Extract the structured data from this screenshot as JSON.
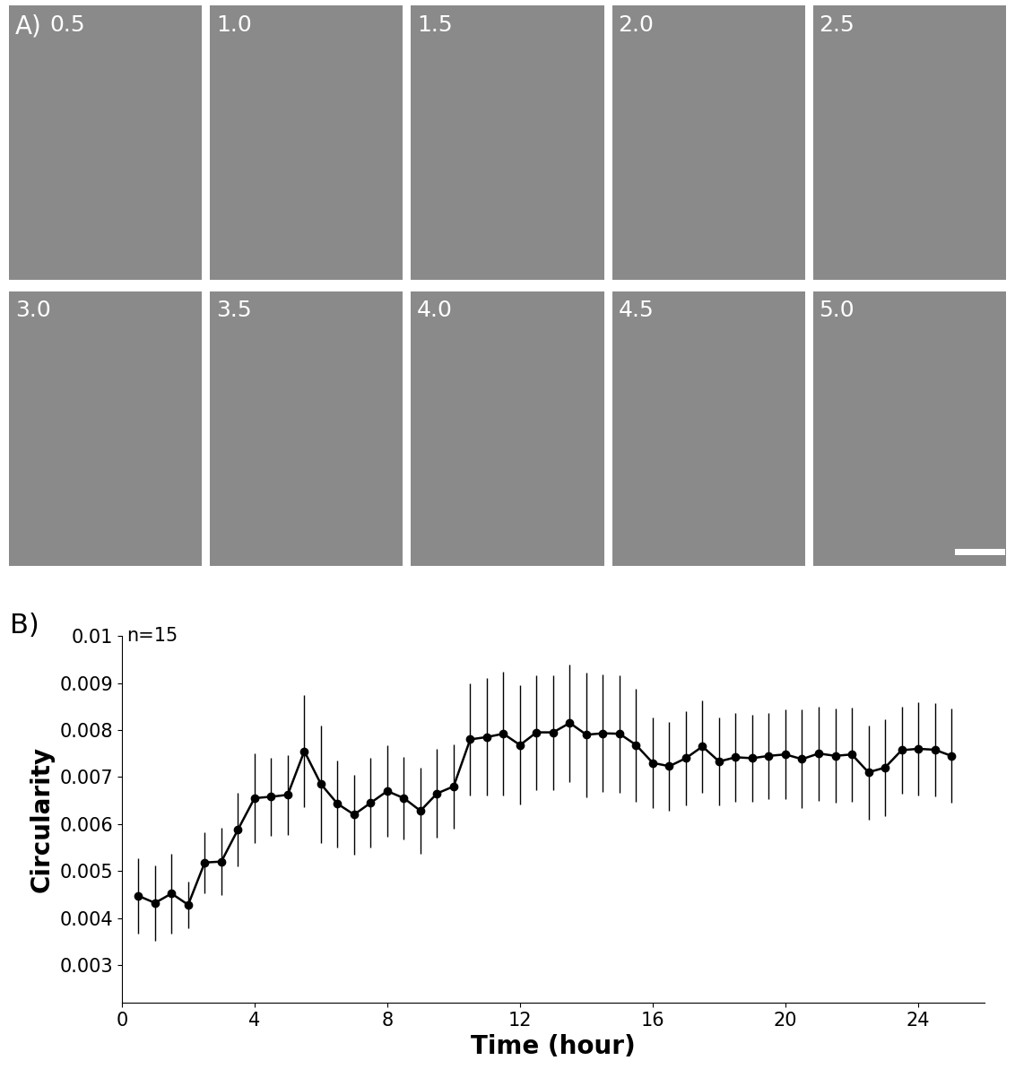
{
  "panel_a": {
    "label": "A)",
    "frames": [
      "0.5",
      "1.0",
      "1.5",
      "2.0",
      "2.5",
      "3.0",
      "3.5",
      "4.0",
      "4.5",
      "5.0"
    ]
  },
  "chart_data": {
    "type": "line",
    "panel_label": "B)",
    "annotation": "n=15",
    "x_label": "Time (hour)",
    "y_label": "Circularity",
    "x": [
      0.5,
      1.0,
      1.5,
      2.0,
      2.5,
      3.0,
      3.5,
      4.0,
      4.5,
      5.0,
      5.5,
      6.0,
      6.5,
      7.0,
      7.5,
      8.0,
      8.5,
      9.0,
      9.5,
      10.0,
      10.5,
      11.0,
      11.5,
      12.0,
      12.5,
      13.0,
      13.5,
      14.0,
      14.5,
      15.0,
      15.5,
      16.0,
      16.5,
      17.0,
      17.5,
      18.0,
      18.5,
      19.0,
      19.5,
      20.0,
      20.5,
      21.0,
      21.5,
      22.0,
      22.5,
      23.0,
      23.5,
      24.0,
      24.5,
      25.0
    ],
    "series": [
      {
        "name": "Circularity",
        "color": "#000000",
        "marker": "o",
        "line_style": "solid",
        "values": [
          0.00447,
          0.00432,
          0.00452,
          0.00428,
          0.00518,
          0.0052,
          0.00588,
          0.00655,
          0.00658,
          0.00662,
          0.00755,
          0.00685,
          0.00643,
          0.0062,
          0.00645,
          0.0067,
          0.00655,
          0.00628,
          0.00665,
          0.0068,
          0.0078,
          0.00785,
          0.00792,
          0.00768,
          0.00795,
          0.00795,
          0.00815,
          0.0079,
          0.00793,
          0.00792,
          0.00768,
          0.0073,
          0.00723,
          0.0074,
          0.00765,
          0.00733,
          0.00742,
          0.0074,
          0.00745,
          0.00748,
          0.00738,
          0.0075,
          0.00745,
          0.00748,
          0.0071,
          0.0072,
          0.00757,
          0.0076,
          0.00758,
          0.00745
        ],
        "errors": [
          0.0008,
          0.0008,
          0.00085,
          0.0005,
          0.00065,
          0.00072,
          0.00078,
          0.00095,
          0.00083,
          0.00085,
          0.0012,
          0.00125,
          0.00093,
          0.00085,
          0.00095,
          0.00097,
          0.00088,
          0.00092,
          0.00095,
          0.0009,
          0.0012,
          0.00125,
          0.00132,
          0.00127,
          0.00122,
          0.00122,
          0.00125,
          0.00133,
          0.00125,
          0.00125,
          0.0012,
          0.00097,
          0.00095,
          0.001,
          0.00098,
          0.00093,
          0.00095,
          0.00092,
          0.00092,
          0.00095,
          0.00105,
          0.001,
          0.001,
          0.001,
          0.001,
          0.00103,
          0.00093,
          0.001,
          0.001,
          0.001
        ]
      }
    ],
    "xlim": [
      0,
      26
    ],
    "xticks": [
      0,
      4,
      8,
      12,
      16,
      20,
      24
    ],
    "ylim": [
      0.0022,
      0.01
    ],
    "yticks": [
      0.003,
      0.004,
      0.005,
      0.006,
      0.007,
      0.008,
      0.009,
      0.01
    ],
    "grid": false
  }
}
